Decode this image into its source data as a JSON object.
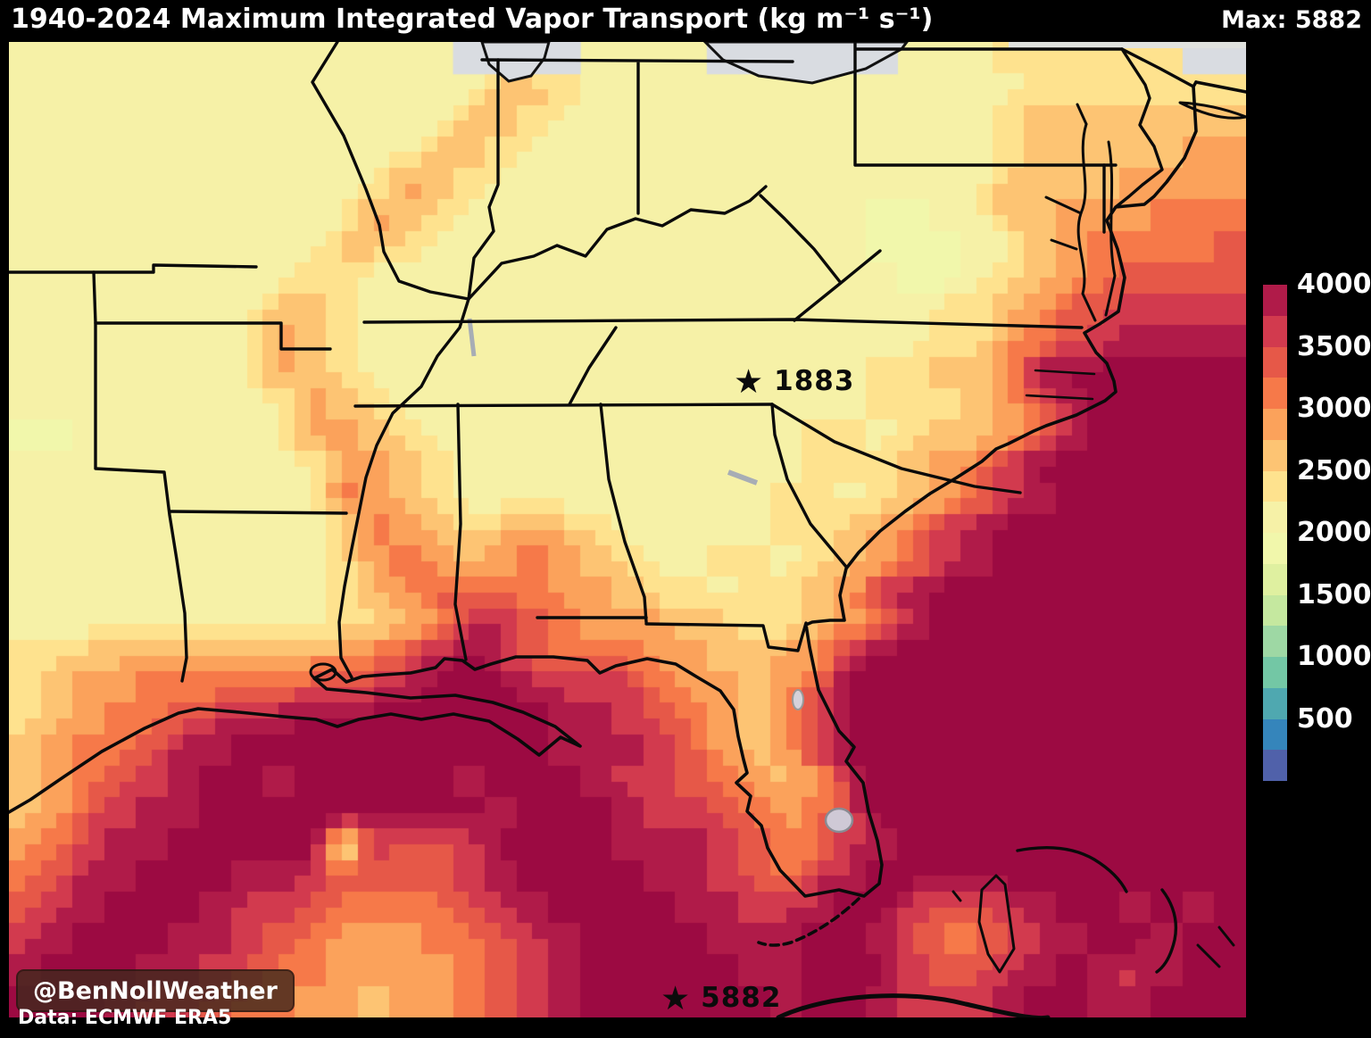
{
  "title": "1940-2024 Maximum Integrated Vapor Transport (kg m⁻¹ s⁻¹)",
  "max_label": "Max: 5882",
  "annotations": {
    "star1": {
      "label": "1883"
    },
    "star2": {
      "label": "5882"
    }
  },
  "watermark": "@BenNollWeather",
  "credit": "Data: ECMWF ERA5",
  "colorbar": {
    "min": 0,
    "max": 4000,
    "ticks": [
      4000,
      3500,
      3000,
      2500,
      2000,
      1500,
      1000,
      500
    ],
    "colors": [
      "#5061aa",
      "#3585bb",
      "#4fa8b0",
      "#73c7a5",
      "#9ed8a4",
      "#c5e89f",
      "#dff0a0",
      "#f1f7ab",
      "#f6f1a7",
      "#fee28e",
      "#fdc473",
      "#fba25b",
      "#f67949",
      "#e65848",
      "#d23a4e",
      "#b01b49"
    ]
  },
  "map": {
    "cols": 39,
    "rows": 31,
    "gray": "#d9dce1",
    "palette": [
      "#5061aa",
      "#3585bb",
      "#4fa8b0",
      "#73c7a5",
      "#9ed8a4",
      "#c5e89f",
      "#dff0a0",
      "#f1f7ab",
      "#f6f1a7",
      "#fee28e",
      "#fdc473",
      "#fba25b",
      "#f67949",
      "#e65848",
      "#d23a4e",
      "#b01b49",
      "#9c0a42"
    ],
    "grid": [
      "88888888888888xxxx8888xxxxxx888999999xx",
      "888888888888888aa98888888888888899999999",
      "88888888888888aa9888888888888889aaaaaaa",
      "8888888888888aa98888888888888889aaaaabbb",
      "888888888888ba98888888888888888aaaabbbbb",
      "88888888888ba988888888888887788aabbbcccc",
      "8888888888aa988888888888888777 8abccccdd",
      "888888888998888888888888888877 9abcdddde",
      "88888888aa988888888888888888899abddeeeee",
      "88888888ba988888888888888888899bcdefffff",
      "88888888ba9888888888888888899aacfgggggg",
      "888888888ba9888888888888888999abdfggggg",
      "778888888bba988888888888899 9aabcfgggggg",
      "8888888888bba988888888888999abceggggggg",
      "8888888888cba9888888888899 9abcefggggggg",
      "88888888889cba9aba98888899abcefgggggggg",
      "88888888889bcbabcba98899 9abcefggggggggg",
      "88888888889abddccbba99899abefgggggggggg",
      "888888888 99abefdcbbbaa99abcfgggggggggggg",
      "99aabbbbbbbcdfgedcccbbaabbfgggggggggggg",
      "9abbcccccddefgggfeeecbbabdggggggggggggg",
      "9abccdeffggggggggffedcbabdggggggggggggg",
      "abccdffggggggggggfffedbabeggggggggggggg",
      "abcdefggfgggggfgggfeedcbabegggggggggggg",
      "abdeffgggggggggfgggfeedcbcegggggggggggg",
      "bceffggggg eddeggggfffedccefgggggggggggg",
      "cdffgggffeddddefggggffedcefgggggggggggg",
      "defgggfeedccccdefggggffeefggeddefggfgfg",
      "efgggffedcbbbccdefggggfffggfdccdefggfgg",
      "fgggffedccbbbbcdefgggggffgggeddefgfefgg",
      "gggfeedccbbabbcdefggggggfggfeeefggffggg"
    ]
  }
}
